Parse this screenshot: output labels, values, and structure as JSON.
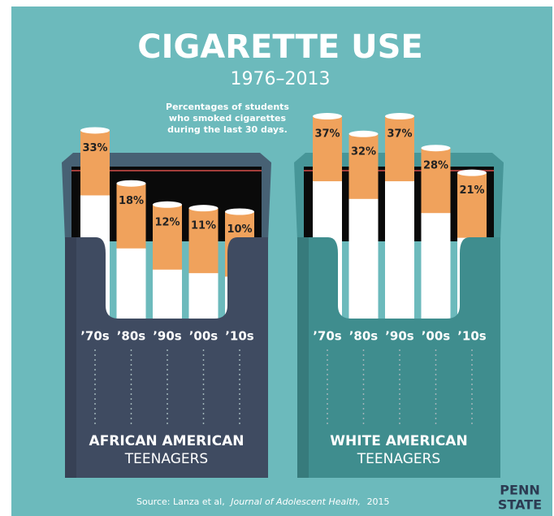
{
  "title": "CIGARETTE USE",
  "subtitle": "1976–2013",
  "note": [
    "Percentages of students",
    "who smoked cigarettes",
    "during the last 30 days."
  ],
  "source": {
    "prefix": "Source: Lanza et al,",
    "journal": "Journal of Adolescent Health,",
    "year": "2015"
  },
  "logo": [
    "PENN",
    "STATE"
  ],
  "chart_data": [
    {
      "type": "bar",
      "title": "AFRICAN AMERICAN",
      "subtitle": "TEENAGERS",
      "categories": [
        "’70s",
        "’80s",
        "’90s",
        "’00s",
        "’10s"
      ],
      "values": [
        33,
        18,
        12,
        11,
        10
      ],
      "value_labels": [
        "33%",
        "18%",
        "12%",
        "11%",
        "10%"
      ],
      "color": "#f0a25c",
      "pack_color": "#3f4b61"
    },
    {
      "type": "bar",
      "title": "WHITE AMERICAN",
      "subtitle": "TEENAGERS",
      "categories": [
        "’70s",
        "’80s",
        "’90s",
        "’00s",
        "’10s"
      ],
      "values": [
        37,
        32,
        37,
        28,
        21
      ],
      "value_labels": [
        "37%",
        "32%",
        "37%",
        "28%",
        "21%"
      ],
      "color": "#f0a25c",
      "pack_color": "#3f8d8e"
    }
  ]
}
